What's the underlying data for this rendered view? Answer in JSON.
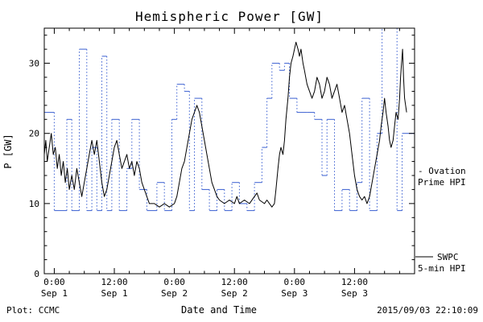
{
  "title": "Hemispheric Power [GW]",
  "footer": {
    "left": "Plot: CCMC",
    "right": "2015/09/03 22:10:09"
  },
  "legend": {
    "ovation_line1": "- Ovation",
    "ovation_line2": "Prime HPI",
    "swpc_line1": "SWPC",
    "swpc_line2": "5-min HPI"
  },
  "colors": {
    "ovation": "#3a5fd1",
    "swpc": "#000000",
    "background": "#ffffff"
  },
  "chart_data": {
    "type": "line",
    "title": "Hemispheric Power [GW]",
    "xlabel": "Date and Time",
    "ylabel": "P [GW]",
    "ylim": [
      0,
      35
    ],
    "yticks": [
      0,
      10,
      20,
      30
    ],
    "y_minor_step": 2,
    "xlim_hours": [
      -2,
      72
    ],
    "x_minor_step_hours": 3,
    "grid": false,
    "legend_position": "right",
    "xticks": [
      {
        "hours": 0,
        "label_time": "0:00",
        "label_date": "Sep 1"
      },
      {
        "hours": 12,
        "label_time": "12:00",
        "label_date": "Sep 1"
      },
      {
        "hours": 24,
        "label_time": "0:00",
        "label_date": "Sep 2"
      },
      {
        "hours": 36,
        "label_time": "12:00",
        "label_date": "Sep 2"
      },
      {
        "hours": 48,
        "label_time": "0:00",
        "label_date": "Sep 3"
      },
      {
        "hours": 60,
        "label_time": "12:00",
        "label_date": "Sep 3"
      }
    ],
    "series": [
      {
        "name": "Ovation Prime HPI",
        "color": "#3a5fd1",
        "style": "step",
        "points": [
          [
            -2,
            23
          ],
          [
            0,
            9
          ],
          [
            2.5,
            22
          ],
          [
            3.5,
            9
          ],
          [
            5,
            32
          ],
          [
            6.5,
            9
          ],
          [
            7.5,
            18
          ],
          [
            8.5,
            9
          ],
          [
            9.5,
            31
          ],
          [
            10.5,
            9
          ],
          [
            11.5,
            22
          ],
          [
            13,
            9
          ],
          [
            14.5,
            15
          ],
          [
            15.5,
            22
          ],
          [
            17,
            12
          ],
          [
            18.5,
            9
          ],
          [
            20.5,
            13
          ],
          [
            22,
            9
          ],
          [
            23.5,
            22
          ],
          [
            24.5,
            27
          ],
          [
            26,
            26
          ],
          [
            27,
            9
          ],
          [
            28,
            25
          ],
          [
            29.5,
            12
          ],
          [
            31,
            9
          ],
          [
            32.5,
            12
          ],
          [
            34,
            9
          ],
          [
            35.5,
            13
          ],
          [
            37,
            10
          ],
          [
            38.5,
            9
          ],
          [
            40,
            13
          ],
          [
            41.5,
            18
          ],
          [
            42.5,
            25
          ],
          [
            43.5,
            30
          ],
          [
            45,
            29
          ],
          [
            46,
            30
          ],
          [
            47,
            25
          ],
          [
            48.5,
            23
          ],
          [
            50.5,
            23
          ],
          [
            52,
            22
          ],
          [
            53.5,
            14
          ],
          [
            54.5,
            22
          ],
          [
            56,
            9
          ],
          [
            57.5,
            12
          ],
          [
            59,
            9
          ],
          [
            60.5,
            13
          ],
          [
            61.5,
            25
          ],
          [
            63,
            9
          ],
          [
            64.5,
            20
          ],
          [
            65.5,
            35
          ],
          [
            67.5,
            35
          ],
          [
            68.5,
            9
          ],
          [
            69.5,
            20
          ],
          [
            72,
            20
          ]
        ]
      },
      {
        "name": "SWPC 5-min HPI",
        "color": "#000000",
        "style": "solid",
        "points": [
          [
            -2,
            17
          ],
          [
            -1.7,
            19
          ],
          [
            -1.4,
            16
          ],
          [
            -1,
            18
          ],
          [
            -0.6,
            20
          ],
          [
            -0.2,
            17
          ],
          [
            0.2,
            18
          ],
          [
            0.6,
            15
          ],
          [
            1,
            17
          ],
          [
            1.4,
            14
          ],
          [
            1.8,
            16
          ],
          [
            2.2,
            13
          ],
          [
            2.6,
            15
          ],
          [
            3,
            12
          ],
          [
            3.5,
            14
          ],
          [
            4,
            12
          ],
          [
            4.5,
            15
          ],
          [
            5,
            13
          ],
          [
            5.5,
            11
          ],
          [
            6,
            13
          ],
          [
            6.5,
            15
          ],
          [
            7,
            17
          ],
          [
            7.5,
            19
          ],
          [
            8,
            17
          ],
          [
            8.5,
            19
          ],
          [
            9,
            16
          ],
          [
            9.5,
            13
          ],
          [
            10,
            11
          ],
          [
            10.5,
            12
          ],
          [
            11,
            14
          ],
          [
            11.5,
            16
          ],
          [
            12,
            18
          ],
          [
            12.5,
            19
          ],
          [
            13,
            17
          ],
          [
            13.5,
            15
          ],
          [
            14,
            16
          ],
          [
            14.5,
            17
          ],
          [
            15,
            15
          ],
          [
            15.5,
            16
          ],
          [
            16,
            14
          ],
          [
            16.5,
            16
          ],
          [
            17,
            15
          ],
          [
            17.5,
            13
          ],
          [
            18,
            12
          ],
          [
            18.5,
            11
          ],
          [
            19,
            10
          ],
          [
            20,
            10
          ],
          [
            21,
            9.5
          ],
          [
            22,
            10
          ],
          [
            23,
            9.5
          ],
          [
            24,
            10
          ],
          [
            24.5,
            11
          ],
          [
            25,
            13
          ],
          [
            25.5,
            15
          ],
          [
            26,
            16
          ],
          [
            26.5,
            18
          ],
          [
            27,
            20
          ],
          [
            27.5,
            22
          ],
          [
            28,
            23
          ],
          [
            28.5,
            24
          ],
          [
            29,
            23
          ],
          [
            29.5,
            21
          ],
          [
            30,
            19
          ],
          [
            30.5,
            17
          ],
          [
            31,
            15
          ],
          [
            31.5,
            13
          ],
          [
            32,
            12
          ],
          [
            32.5,
            11
          ],
          [
            33,
            10.5
          ],
          [
            34,
            10
          ],
          [
            35,
            10.5
          ],
          [
            36,
            10
          ],
          [
            36.5,
            11
          ],
          [
            37,
            10
          ],
          [
            38,
            10.5
          ],
          [
            39,
            10
          ],
          [
            40,
            11
          ],
          [
            40.5,
            11.5
          ],
          [
            41,
            10.5
          ],
          [
            42,
            10
          ],
          [
            42.5,
            10.5
          ],
          [
            43,
            10
          ],
          [
            43.5,
            9.5
          ],
          [
            44,
            10
          ],
          [
            44.3,
            12
          ],
          [
            44.7,
            15
          ],
          [
            45,
            17
          ],
          [
            45.3,
            18
          ],
          [
            45.7,
            17
          ],
          [
            46,
            19
          ],
          [
            46.3,
            22
          ],
          [
            46.7,
            25
          ],
          [
            47,
            28
          ],
          [
            47.3,
            30
          ],
          [
            47.7,
            31
          ],
          [
            48,
            32
          ],
          [
            48.3,
            33
          ],
          [
            48.7,
            32
          ],
          [
            49,
            31
          ],
          [
            49.3,
            32
          ],
          [
            49.7,
            30
          ],
          [
            50,
            29
          ],
          [
            50.5,
            27
          ],
          [
            51,
            26
          ],
          [
            51.5,
            25
          ],
          [
            52,
            26
          ],
          [
            52.5,
            28
          ],
          [
            53,
            27
          ],
          [
            53.5,
            25
          ],
          [
            54,
            26
          ],
          [
            54.5,
            28
          ],
          [
            55,
            27
          ],
          [
            55.5,
            25
          ],
          [
            56,
            26
          ],
          [
            56.5,
            27
          ],
          [
            57,
            25
          ],
          [
            57.5,
            23
          ],
          [
            58,
            24
          ],
          [
            58.5,
            22
          ],
          [
            59,
            20
          ],
          [
            59.5,
            17
          ],
          [
            60,
            14
          ],
          [
            60.5,
            12
          ],
          [
            61,
            11
          ],
          [
            61.5,
            10.5
          ],
          [
            62,
            11
          ],
          [
            62.5,
            10
          ],
          [
            63,
            11
          ],
          [
            63.5,
            13
          ],
          [
            64,
            15
          ],
          [
            64.5,
            17
          ],
          [
            65,
            19
          ],
          [
            65.3,
            21
          ],
          [
            65.7,
            23
          ],
          [
            66,
            25
          ],
          [
            66.3,
            23
          ],
          [
            66.7,
            21
          ],
          [
            67,
            19
          ],
          [
            67.3,
            18
          ],
          [
            67.7,
            19
          ],
          [
            68,
            21
          ],
          [
            68.3,
            23
          ],
          [
            68.7,
            22
          ],
          [
            69,
            25
          ],
          [
            69.2,
            28
          ],
          [
            69.4,
            30
          ],
          [
            69.6,
            32
          ],
          [
            69.8,
            28
          ],
          [
            70,
            25
          ],
          [
            70.4,
            23
          ]
        ]
      }
    ]
  }
}
